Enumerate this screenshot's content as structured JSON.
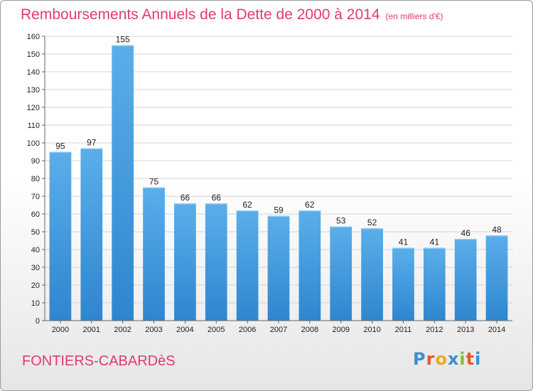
{
  "header": {
    "title": "Remboursements Annuels de la Dette de 2000 à 2014",
    "subtitle": "(en milliers d'€)"
  },
  "footer": {
    "commune": "FONTIERS-CABARDèS",
    "logo": "Proxiti",
    "logo_colors": [
      "#3a8fd4",
      "#e8572a",
      "#f2a81f",
      "#3a8fd4",
      "#7cbf3c",
      "#e8572a",
      "#3a8fd4"
    ]
  },
  "chart_data": {
    "type": "bar",
    "title": "Remboursements Annuels de la Dette de 2000 à 2014",
    "subtitle": "(en milliers d'€)",
    "xlabel": "",
    "ylabel": "",
    "categories": [
      "2000",
      "2001",
      "2002",
      "2003",
      "2004",
      "2005",
      "2006",
      "2007",
      "2008",
      "2009",
      "2010",
      "2011",
      "2012",
      "2013",
      "2014"
    ],
    "values": [
      95,
      97,
      155,
      75,
      66,
      66,
      62,
      59,
      62,
      53,
      52,
      41,
      41,
      46,
      48
    ],
    "ylim": [
      0,
      160
    ],
    "yticks": [
      0,
      10,
      20,
      30,
      40,
      50,
      60,
      70,
      80,
      90,
      100,
      110,
      120,
      130,
      140,
      150,
      160
    ],
    "grid": true,
    "bar_color": "#4a9fe0",
    "legend": "none"
  }
}
